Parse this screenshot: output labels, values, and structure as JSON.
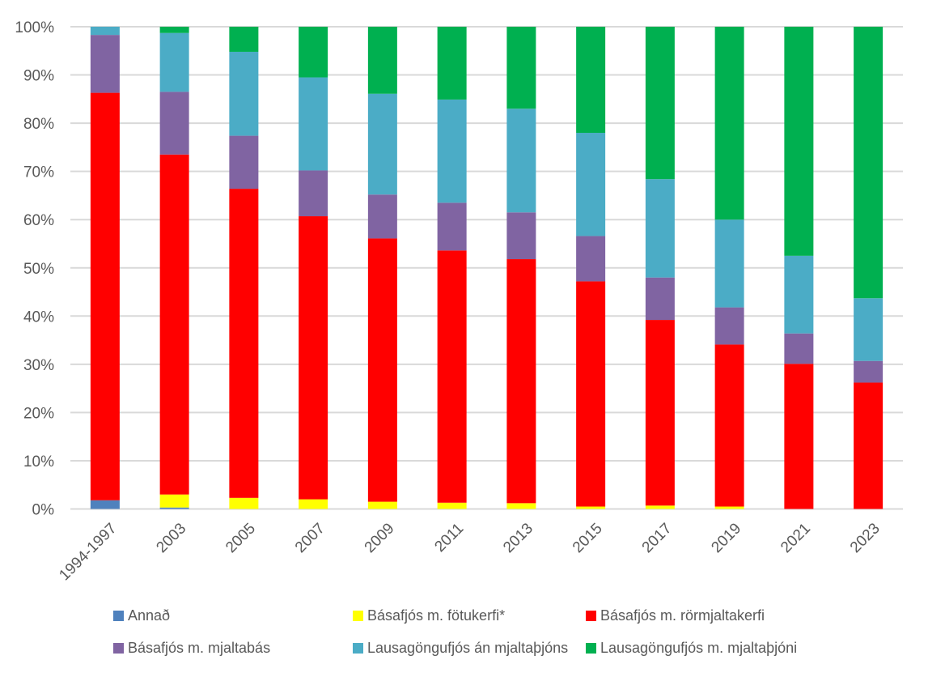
{
  "chart_data": {
    "type": "bar",
    "stacked": "percent",
    "title": "",
    "xlabel": "",
    "ylabel": "",
    "ylim": [
      0,
      100
    ],
    "y_ticks": [
      "0%",
      "10%",
      "20%",
      "30%",
      "40%",
      "50%",
      "60%",
      "70%",
      "80%",
      "90%",
      "100%"
    ],
    "grid": true,
    "legend_position": "bottom",
    "categories": [
      "1994-1997",
      "2003",
      "2005",
      "2007",
      "2009",
      "2011",
      "2013",
      "2015",
      "2017",
      "2019",
      "2021",
      "2023"
    ],
    "series": [
      {
        "name": "Annað",
        "color": "#4F81BD",
        "values": [
          1.8,
          0.3,
          0,
          0,
          0,
          0,
          0,
          0,
          0,
          0,
          0,
          0
        ]
      },
      {
        "name": "Básafjós m. fötukerfi*",
        "color": "#FFFF00",
        "values": [
          0,
          2.7,
          2.3,
          2.0,
          1.5,
          1.3,
          1.2,
          0.5,
          0.7,
          0.5,
          0,
          0
        ]
      },
      {
        "name": "Básafjós m. rörmjaltakerfi",
        "color": "#FF0000",
        "values": [
          84.5,
          70.5,
          64.1,
          58.7,
          54.6,
          52.3,
          50.6,
          46.7,
          38.5,
          33.6,
          30.1,
          26.2
        ]
      },
      {
        "name": "Básafjós m. mjaltabás",
        "color": "#8064A2",
        "values": [
          12.0,
          13.0,
          11.0,
          9.5,
          9.1,
          9.9,
          9.7,
          9.4,
          8.8,
          7.7,
          6.3,
          4.5
        ]
      },
      {
        "name": "Lausagöngufjós án mjaltaþjóns",
        "color": "#4BACC6",
        "values": [
          1.7,
          12.2,
          17.4,
          19.3,
          20.9,
          21.4,
          21.5,
          21.4,
          20.4,
          18.2,
          16.1,
          13.0
        ]
      },
      {
        "name": "Lausagöngufjós m. mjaltaþjóni",
        "color": "#00B050",
        "values": [
          0,
          1.3,
          5.2,
          10.5,
          13.9,
          15.1,
          17.0,
          22.0,
          31.6,
          40.0,
          47.5,
          56.3
        ]
      }
    ]
  },
  "legend_items": [
    {
      "label": "Annað",
      "color": "#4F81BD"
    },
    {
      "label": "Básafjós m. fötukerfi*",
      "color": "#FFFF00"
    },
    {
      "label": "Básafjós m. rörmjaltakerfi",
      "color": "#FF0000"
    },
    {
      "label": "Básafjós m. mjaltabás",
      "color": "#8064A2"
    },
    {
      "label": "Lausagöngufjós án mjaltaþjóns",
      "color": "#4BACC6"
    },
    {
      "label": "Lausagöngufjós m. mjaltaþjóni",
      "color": "#00B050"
    }
  ]
}
